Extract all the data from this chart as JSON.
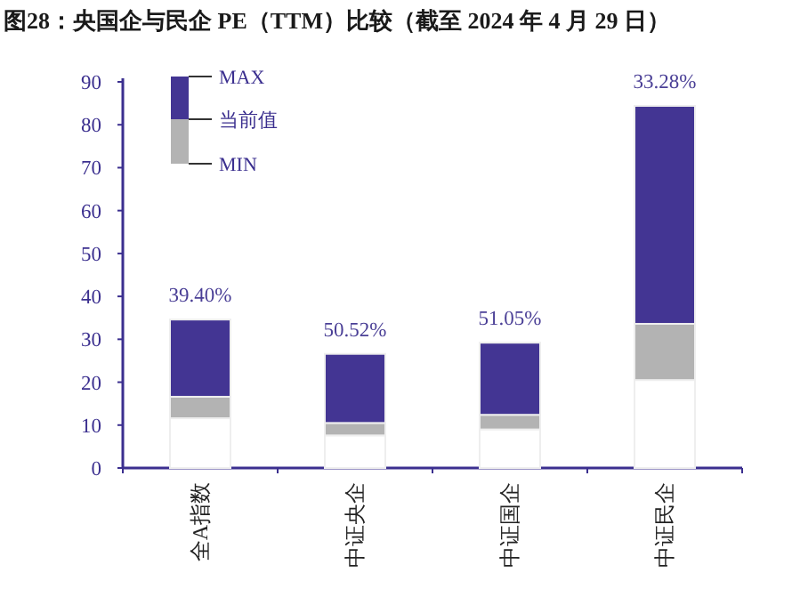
{
  "chart_data": {
    "type": "bar",
    "title": "图28：央国企与民企 PE（TTM）比较（截至 2024 年 4 月 29 日）",
    "categories": [
      "全A指数",
      "中证央企",
      "中证国企",
      "中证民企"
    ],
    "stacked": true,
    "series": [
      {
        "color": "#ffffff",
        "values": [
          11.6,
          7.6,
          9.0,
          20.5
        ]
      },
      {
        "color": "#b3b3b3",
        "values": [
          5.0,
          2.9,
          3.4,
          13.1
        ]
      },
      {
        "color": "#433593",
        "values": [
          18.0,
          16.1,
          16.8,
          50.8
        ]
      }
    ],
    "annotations": [
      "MAX",
      "当前值",
      "MIN",
      {
        "text": "39.40%",
        "x": "全A指数",
        "y": 34.6
      },
      {
        "text": "50.52%",
        "x": "中证央企",
        "y": 26.6
      },
      {
        "text": "51.05%",
        "x": "中证国企",
        "y": 29.2
      },
      {
        "text": "33.28%",
        "x": "中证民企",
        "y": 84.4
      }
    ],
    "ylim": [
      0,
      90
    ],
    "yticks": [
      0,
      10,
      20,
      30,
      40,
      50,
      60,
      70,
      80,
      90
    ],
    "grid": false
  }
}
